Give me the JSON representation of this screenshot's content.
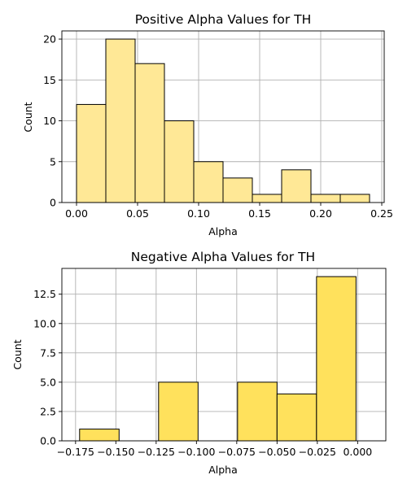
{
  "chart_data": [
    {
      "type": "bar",
      "title": "Positive Alpha Values for TH",
      "xlabel": "Alpha",
      "ylabel": "Count",
      "xlim": [
        -0.012,
        0.252
      ],
      "ylim": [
        0,
        21
      ],
      "grid": true,
      "bar_color": "#FFE896",
      "xticks": [
        0.0,
        0.05,
        0.1,
        0.15,
        0.2,
        0.25
      ],
      "xtick_labels": [
        "0.00",
        "0.05",
        "0.10",
        "0.15",
        "0.20",
        "0.25"
      ],
      "yticks": [
        0,
        5,
        10,
        15,
        20
      ],
      "ytick_labels": [
        "0",
        "5",
        "10",
        "15",
        "20"
      ],
      "bins": [
        {
          "x0": 0.0,
          "x1": 0.024,
          "count": 12
        },
        {
          "x0": 0.024,
          "x1": 0.048,
          "count": 20
        },
        {
          "x0": 0.048,
          "x1": 0.072,
          "count": 17
        },
        {
          "x0": 0.072,
          "x1": 0.096,
          "count": 10
        },
        {
          "x0": 0.096,
          "x1": 0.12,
          "count": 5
        },
        {
          "x0": 0.12,
          "x1": 0.144,
          "count": 3
        },
        {
          "x0": 0.144,
          "x1": 0.168,
          "count": 1
        },
        {
          "x0": 0.168,
          "x1": 0.192,
          "count": 4
        },
        {
          "x0": 0.192,
          "x1": 0.216,
          "count": 1
        },
        {
          "x0": 0.216,
          "x1": 0.24,
          "count": 1
        }
      ]
    },
    {
      "type": "bar",
      "title": "Negative Alpha Values for TH",
      "xlabel": "Alpha",
      "ylabel": "Count",
      "xlim": [
        -0.1835,
        0.0175
      ],
      "ylim": [
        0,
        14.7
      ],
      "grid": true,
      "bar_color": "#FFE15C",
      "xticks": [
        -0.175,
        -0.15,
        -0.125,
        -0.1,
        -0.075,
        -0.05,
        -0.025,
        0.0
      ],
      "xtick_labels": [
        "−0.175",
        "−0.150",
        "−0.125",
        "−0.100",
        "−0.075",
        "−0.050",
        "−0.025",
        "0.000"
      ],
      "yticks": [
        0,
        2.5,
        5,
        7.5,
        10,
        12.5
      ],
      "ytick_labels": [
        "0.0",
        "2.5",
        "5.0",
        "7.5",
        "10.0",
        "12.5"
      ],
      "bins": [
        {
          "x0": -0.1725,
          "x1": -0.148,
          "count": 1
        },
        {
          "x0": -0.148,
          "x1": -0.1235,
          "count": 0
        },
        {
          "x0": -0.1235,
          "x1": -0.099,
          "count": 5
        },
        {
          "x0": -0.099,
          "x1": -0.0745,
          "count": 0
        },
        {
          "x0": -0.0745,
          "x1": -0.05,
          "count": 5
        },
        {
          "x0": -0.05,
          "x1": -0.0255,
          "count": 4
        },
        {
          "x0": -0.0255,
          "x1": -0.001,
          "count": 14
        }
      ]
    }
  ]
}
